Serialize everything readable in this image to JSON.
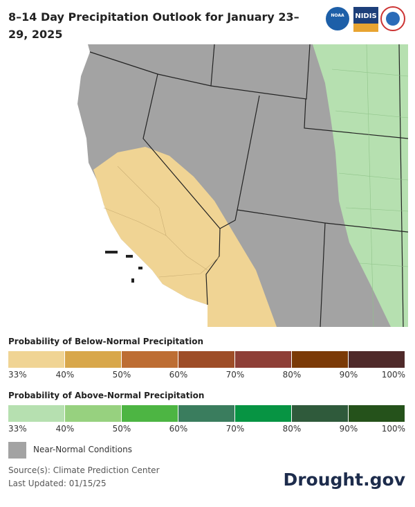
{
  "header": {
    "title": "8–14 Day Precipitation Outlook for January 23–29, 2025",
    "logos": [
      "NOAA",
      "NIDIS"
    ]
  },
  "legend": [
    {
      "title": "Probability of Below-Normal Precipitation",
      "colors": [
        "#f0d494",
        "#d8a74a",
        "#bd6d33",
        "#9e4d27",
        "#8e3f37",
        "#7b3a07",
        "#4f2a2a"
      ],
      "labels": [
        "33%",
        "40%",
        "50%",
        "60%",
        "70%",
        "80%",
        "90%",
        "100%"
      ]
    },
    {
      "title": "Probability of Above-Normal Precipitation",
      "colors": [
        "#b6e0b0",
        "#97d17f",
        "#4db543",
        "#3a7d5e",
        "#079443",
        "#2f5a3b",
        "#25521b"
      ],
      "labels": [
        "33%",
        "40%",
        "50%",
        "60%",
        "70%",
        "80%",
        "90%",
        "100%"
      ]
    }
  ],
  "near_normal": {
    "label": "Near-Normal Conditions",
    "color": "#a3a3a3"
  },
  "footer": {
    "source": "Source(s): Climate Prediction Center",
    "updated": "Last Updated: 01/15/25",
    "brand": "Drought.gov"
  }
}
